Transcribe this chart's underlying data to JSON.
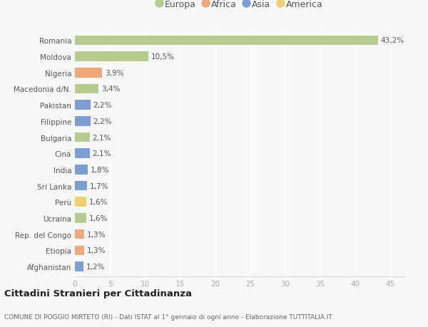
{
  "countries": [
    "Romania",
    "Moldova",
    "Nigeria",
    "Macedonia d/N.",
    "Pakistan",
    "Filippine",
    "Bulgaria",
    "Cina",
    "India",
    "Sri Lanka",
    "Perù",
    "Ucraina",
    "Rep. del Congo",
    "Etiopia",
    "Afghanistan"
  ],
  "values": [
    43.2,
    10.5,
    3.9,
    3.4,
    2.2,
    2.2,
    2.1,
    2.1,
    1.8,
    1.7,
    1.6,
    1.6,
    1.3,
    1.3,
    1.2
  ],
  "labels": [
    "43,2%",
    "10,5%",
    "3,9%",
    "3,4%",
    "2,2%",
    "2,2%",
    "2,1%",
    "2,1%",
    "1,8%",
    "1,7%",
    "1,6%",
    "1,6%",
    "1,3%",
    "1,3%",
    "1,2%"
  ],
  "continents": [
    "Europa",
    "Europa",
    "Africa",
    "Europa",
    "Asia",
    "Asia",
    "Europa",
    "Asia",
    "Asia",
    "Asia",
    "America",
    "Europa",
    "Africa",
    "Africa",
    "Asia"
  ],
  "colors": {
    "Europa": "#b5cc8e",
    "Africa": "#f0a878",
    "Asia": "#7b9fd4",
    "America": "#f0d070"
  },
  "legend_order": [
    "Europa",
    "Africa",
    "Asia",
    "America"
  ],
  "title": "Cittadini Stranieri per Cittadinanza",
  "subtitle": "COMUNE DI POGGIO MIRTETO (RI) - Dati ISTAT al 1° gennaio di ogni anno - Elaborazione TUTTITALIA.IT",
  "xlim": [
    0,
    47
  ],
  "xticks": [
    0,
    5,
    10,
    15,
    20,
    25,
    30,
    35,
    40,
    45
  ],
  "background_color": "#f7f7f7",
  "grid_color": "#ffffff",
  "bar_height": 0.6
}
